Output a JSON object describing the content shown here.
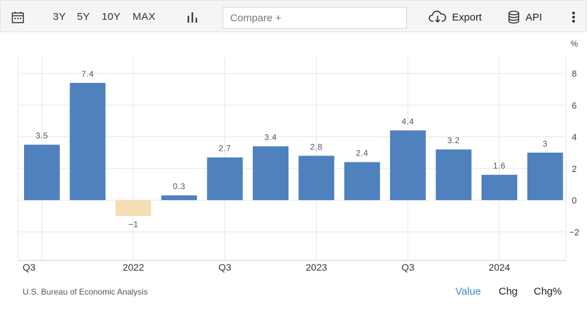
{
  "toolbar": {
    "ranges": [
      "3Y",
      "5Y",
      "10Y",
      "MAX"
    ],
    "compare_placeholder": "Compare +",
    "export_label": "Export",
    "api_label": "API",
    "icons": [
      "calendar-icon",
      "bar-chart-icon",
      "cloud-download-icon",
      "database-icon",
      "more-vertical-icon"
    ]
  },
  "chart_data": {
    "type": "bar",
    "title": "",
    "xlabel": "",
    "ylabel": "%",
    "ylim": [
      -3.8,
      9
    ],
    "yticks": [
      8,
      6,
      4,
      2,
      0,
      -2
    ],
    "grid": true,
    "colors": {
      "positive": "#4e81bd",
      "negative": "#f5deb3"
    },
    "x_tick_labels": [
      "Q3",
      "2022",
      "Q3",
      "2023",
      "Q3",
      "2024"
    ],
    "values": [
      3.5,
      7.4,
      -1,
      0.3,
      2.7,
      3.4,
      2.8,
      2.4,
      4.4,
      3.2,
      1.6,
      3
    ],
    "value_labels": [
      "3.5",
      "7.4",
      "−1",
      "0.3",
      "2.7",
      "3.4",
      "2.8",
      "2.4",
      "4.4",
      "3.2",
      "1.6",
      "3"
    ]
  },
  "footer": {
    "source": "U.S. Bureau of Economic Analysis",
    "modes": [
      "Value",
      "Chg",
      "Chg%"
    ],
    "active_mode": "Value",
    "active_color": "#3a86c8"
  }
}
